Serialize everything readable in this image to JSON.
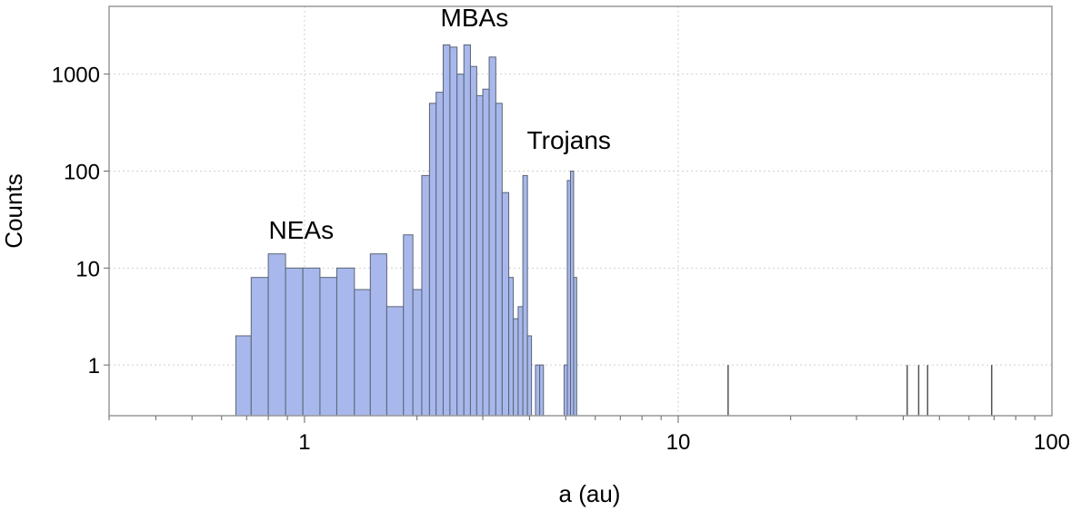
{
  "chart_data": {
    "type": "bar",
    "title": "",
    "xlabel": "a (au)",
    "ylabel": "Counts",
    "x_scale": "log",
    "y_scale": "log",
    "xlim": [
      0.3,
      100
    ],
    "ylim": [
      0.3,
      5000
    ],
    "grid": true,
    "colors": {
      "bar_fill": "#a8b8ec",
      "bar_stroke": "#5a6474",
      "grid": "#d0d0d0",
      "axis": "#999999",
      "spike": "#555555"
    },
    "x_ticks": [
      {
        "value": 1,
        "label": "1"
      },
      {
        "value": 10,
        "label": "10"
      },
      {
        "value": 100,
        "label": "100"
      }
    ],
    "y_ticks": [
      {
        "value": 1,
        "label": "1"
      },
      {
        "value": 10,
        "label": "10"
      },
      {
        "value": 100,
        "label": "100"
      },
      {
        "value": 1000,
        "label": "1000"
      }
    ],
    "bins": [
      {
        "x0": 0.655,
        "x1": 0.72,
        "count": 2
      },
      {
        "x0": 0.72,
        "x1": 0.8,
        "count": 8
      },
      {
        "x0": 0.8,
        "x1": 0.89,
        "count": 14
      },
      {
        "x0": 0.89,
        "x1": 0.99,
        "count": 10
      },
      {
        "x0": 0.99,
        "x1": 1.1,
        "count": 10
      },
      {
        "x0": 1.1,
        "x1": 1.22,
        "count": 8
      },
      {
        "x0": 1.22,
        "x1": 1.36,
        "count": 10
      },
      {
        "x0": 1.36,
        "x1": 1.5,
        "count": 6
      },
      {
        "x0": 1.5,
        "x1": 1.66,
        "count": 14
      },
      {
        "x0": 1.66,
        "x1": 1.84,
        "count": 4
      },
      {
        "x0": 1.84,
        "x1": 1.95,
        "count": 22
      },
      {
        "x0": 1.95,
        "x1": 2.06,
        "count": 6
      },
      {
        "x0": 2.06,
        "x1": 2.16,
        "count": 90
      },
      {
        "x0": 2.16,
        "x1": 2.25,
        "count": 500
      },
      {
        "x0": 2.25,
        "x1": 2.35,
        "count": 650
      },
      {
        "x0": 2.35,
        "x1": 2.45,
        "count": 2000
      },
      {
        "x0": 2.45,
        "x1": 2.56,
        "count": 1900
      },
      {
        "x0": 2.56,
        "x1": 2.67,
        "count": 1000
      },
      {
        "x0": 2.67,
        "x1": 2.78,
        "count": 2000
      },
      {
        "x0": 2.78,
        "x1": 2.89,
        "count": 1200
      },
      {
        "x0": 2.89,
        "x1": 3.0,
        "count": 600
      },
      {
        "x0": 3.0,
        "x1": 3.12,
        "count": 700
      },
      {
        "x0": 3.12,
        "x1": 3.25,
        "count": 1500
      },
      {
        "x0": 3.25,
        "x1": 3.38,
        "count": 500
      },
      {
        "x0": 3.38,
        "x1": 3.52,
        "count": 60
      },
      {
        "x0": 3.52,
        "x1": 3.62,
        "count": 8
      },
      {
        "x0": 3.62,
        "x1": 3.73,
        "count": 3
      },
      {
        "x0": 3.73,
        "x1": 3.84,
        "count": 4
      },
      {
        "x0": 3.84,
        "x1": 3.95,
        "count": 90
      },
      {
        "x0": 3.95,
        "x1": 4.05,
        "count": 2
      },
      {
        "x0": 4.15,
        "x1": 4.26,
        "count": 1
      },
      {
        "x0": 4.26,
        "x1": 4.36,
        "count": 1
      },
      {
        "x0": 4.95,
        "x1": 5.05,
        "count": 1
      },
      {
        "x0": 5.05,
        "x1": 5.15,
        "count": 80
      },
      {
        "x0": 5.15,
        "x1": 5.25,
        "count": 100
      },
      {
        "x0": 5.25,
        "x1": 5.35,
        "count": 8
      }
    ],
    "spikes": [
      {
        "x": 13.6,
        "count": 1
      },
      {
        "x": 41,
        "count": 1
      },
      {
        "x": 44,
        "count": 1
      },
      {
        "x": 46.5,
        "count": 1
      },
      {
        "x": 69,
        "count": 1
      }
    ],
    "annotations": [
      {
        "text": "NEAs",
        "x": 0.98,
        "y": 20
      },
      {
        "text": "MBAs",
        "x": 2.85,
        "y": 3100
      },
      {
        "text": "Trojans",
        "x": 5.1,
        "y": 170
      }
    ]
  }
}
